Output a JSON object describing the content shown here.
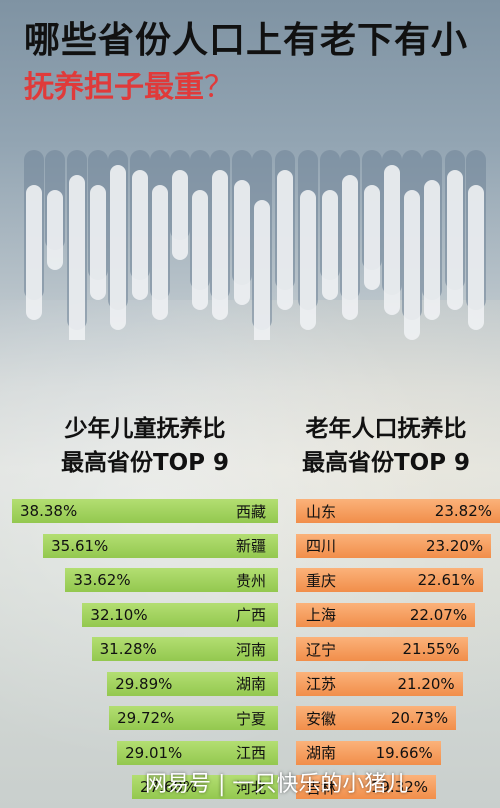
{
  "title": {
    "line1": "哪些省份人口上有老下有小",
    "line2": "抚养担子最重",
    "line2_mark": "？"
  },
  "headings": {
    "left": [
      "少年儿童抚养比",
      "最高省份TOP 9"
    ],
    "right": [
      "老年人口抚养比",
      "最高省份TOP 9"
    ]
  },
  "chart_data": [
    {
      "type": "bar",
      "title": "少年儿童抚养比 最高省份TOP 9",
      "unit": "%",
      "bar_color": "#9ccf58",
      "categories": [
        "西藏",
        "新疆",
        "贵州",
        "广西",
        "河南",
        "湖南",
        "宁夏",
        "江西",
        "河北"
      ],
      "values": [
        38.38,
        35.61,
        33.62,
        32.1,
        31.28,
        29.89,
        29.72,
        29.01,
        27.68
      ],
      "labels": [
        "38.38%",
        "35.61%",
        "33.62%",
        "32.10%",
        "31.28%",
        "29.89%",
        "29.72%",
        "29.01%",
        "27.68%"
      ]
    },
    {
      "type": "bar",
      "title": "老年人口抚养比 最高省份TOP 9",
      "unit": "%",
      "bar_color": "#f4964f",
      "categories": [
        "山东",
        "四川",
        "重庆",
        "上海",
        "辽宁",
        "江苏",
        "安徽",
        "湖南",
        "吉林"
      ],
      "values": [
        23.82,
        23.2,
        22.61,
        22.07,
        21.55,
        21.2,
        20.73,
        19.66,
        19.32
      ],
      "labels": [
        "23.82%",
        "23.20%",
        "22.61%",
        "22.07%",
        "21.55%",
        "21.20%",
        "20.73%",
        "19.66%",
        "19.32%"
      ]
    }
  ],
  "watermark": "网易号 | 一只快乐的小猪儿",
  "colors": {
    "title_red": "#e03a3a",
    "green_bar": "#9ccf58",
    "orange_bar": "#f4964f"
  }
}
